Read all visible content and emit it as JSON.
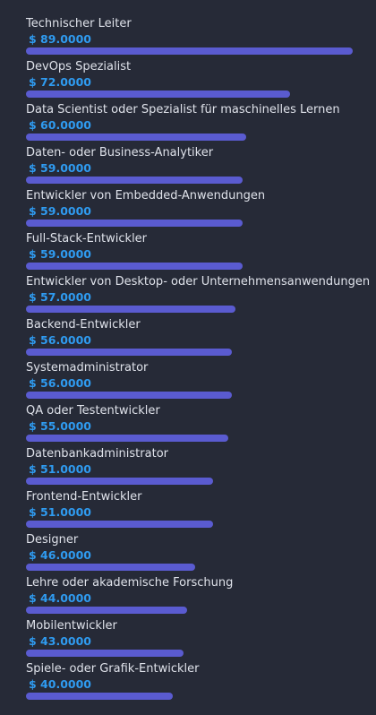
{
  "colors": {
    "background": "#262a37",
    "bar": "#5a5bd0",
    "label": "#dfe2ea",
    "value": "#2f9bf0"
  },
  "chart_data": {
    "type": "bar",
    "orientation": "horizontal",
    "value_prefix": "$",
    "xlim": [
      0,
      89
    ],
    "categories": [
      "Technischer Leiter",
      "DevOps Spezialist",
      "Data Scientist oder Spezialist für maschinelles Lernen",
      "Daten- oder Business-Analytiker",
      "Entwickler von Embedded-Anwendungen",
      "Full-Stack-Entwickler",
      "Entwickler von Desktop- oder Unternehmensanwendungen",
      "Backend-Entwickler",
      "Systemadministrator",
      "QA oder Testentwickler",
      "Datenbankadministrator",
      "Frontend-Entwickler",
      "Designer",
      "Lehre oder akademische Forschung",
      "Mobilentwickler",
      "Spiele- oder Grafik-Entwickler"
    ],
    "values": [
      89,
      72,
      60,
      59,
      59,
      59,
      57,
      56,
      56,
      55,
      51,
      51,
      46,
      44,
      43,
      40
    ],
    "value_labels": [
      "$ 89.0000",
      "$ 72.0000",
      "$ 60.0000",
      "$ 59.0000",
      "$ 59.0000",
      "$ 59.0000",
      "$ 57.0000",
      "$ 56.0000",
      "$ 56.0000",
      "$ 55.0000",
      "$ 51.0000",
      "$ 51.0000",
      "$ 46.0000",
      "$ 44.0000",
      "$ 43.0000",
      "$ 40.0000"
    ]
  }
}
